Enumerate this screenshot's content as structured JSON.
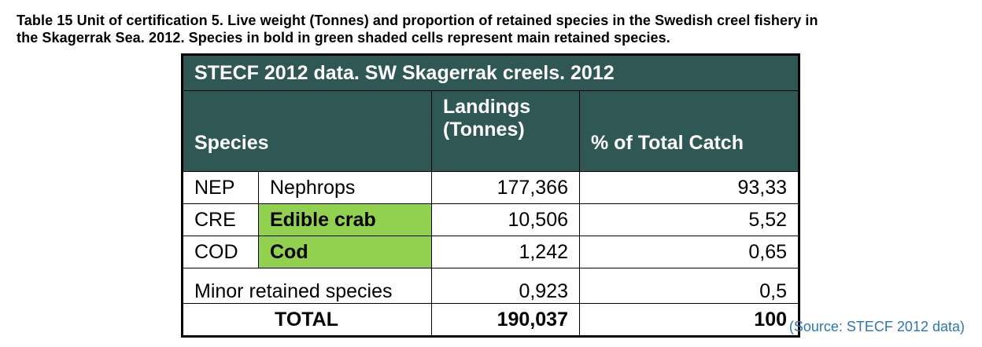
{
  "caption": {
    "line1": "Table 15 Unit of certification 5. Live weight (Tonnes) and proportion of retained species in the Swedish creel fishery in",
    "line2": "the Skagerrak Sea.  2012.  Species in bold in green shaded cells represent main retained species."
  },
  "table": {
    "banner": "STECF 2012 data. SW Skagerrak creels. 2012",
    "headers": {
      "species": "Species",
      "landings_line1": "Landings",
      "landings_line2": "(Tonnes)",
      "percent": "% of Total Catch"
    },
    "rows": [
      {
        "code": "NEP",
        "name": "Nephrops",
        "landings": "177,366",
        "percent": "93,33",
        "main": false
      },
      {
        "code": "CRE",
        "name": "Edible crab",
        "landings": "10,506",
        "percent": "5,52",
        "main": true
      },
      {
        "code": "COD",
        "name": "Cod",
        "landings": "1,242",
        "percent": "0,65",
        "main": true
      }
    ],
    "minor": {
      "label": "Minor retained species",
      "landings": "0,923",
      "percent": "0,5"
    },
    "total": {
      "label": "TOTAL",
      "landings": "190,037",
      "percent": "100"
    },
    "colors": {
      "header_bg": "#2f5753",
      "main_species_bg": "#92d050"
    }
  },
  "source": "(Source: STECF 2012 data)"
}
